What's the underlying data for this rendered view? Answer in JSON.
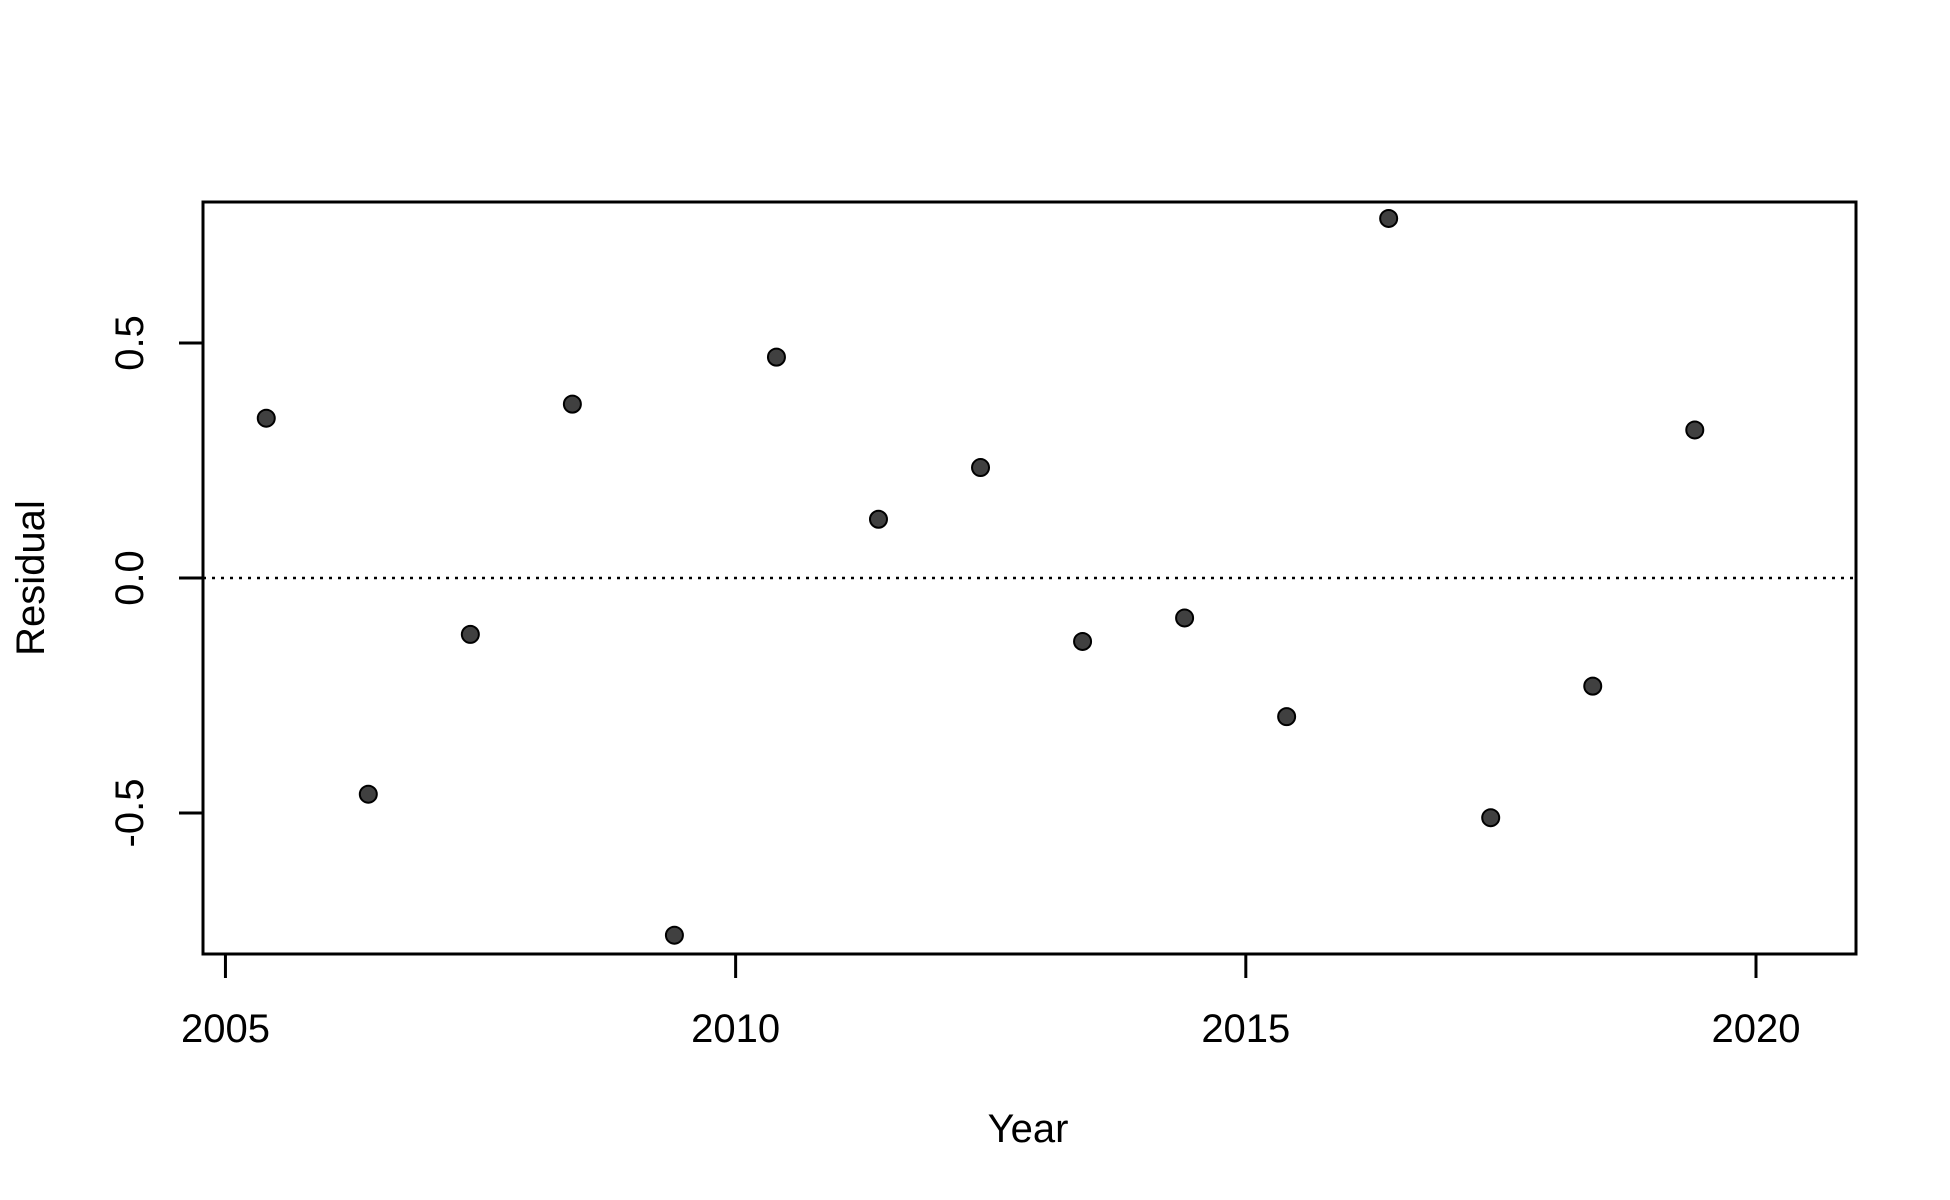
{
  "chart_data": {
    "type": "scatter",
    "title": "",
    "xlabel": "Year",
    "ylabel": "Residual",
    "xlim": [
      2004.78,
      2020.98
    ],
    "ylim": [
      -0.8,
      0.8
    ],
    "x_ticks": [
      2005,
      2010,
      2015,
      2020
    ],
    "x_tick_labels": [
      "2005",
      "2010",
      "2015",
      "2020"
    ],
    "y_ticks": [
      -0.5,
      0.0,
      0.5
    ],
    "y_tick_labels": [
      "-0.5",
      "0.0",
      "0.5"
    ],
    "grid": false,
    "legend": "none",
    "reference_line": {
      "y": 0,
      "style": "dotted",
      "color": "#000000"
    },
    "point_color": "#404040",
    "series": [
      {
        "x": [
          2005.4,
          2006.4,
          2007.4,
          2008.4,
          2009.4,
          2010.4,
          2011.4,
          2012.4,
          2013.4,
          2014.4,
          2015.4,
          2016.4,
          2017.4,
          2018.4,
          2019.4
        ],
        "y": [
          0.34,
          -0.46,
          -0.12,
          0.37,
          -0.76,
          0.47,
          0.125,
          0.235,
          -0.135,
          -0.085,
          -0.295,
          0.765,
          -0.51,
          -0.23,
          0.315
        ]
      }
    ]
  }
}
